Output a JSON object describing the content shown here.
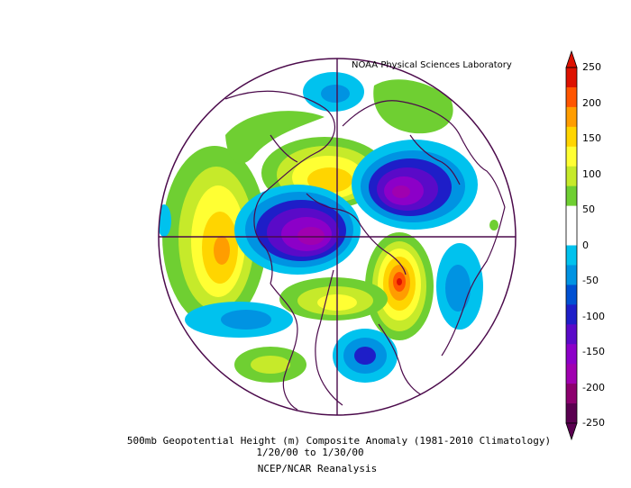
{
  "credit": "NOAA Physical Sciences Laboratory",
  "caption": {
    "title": "500mb Geopotential Height (m) Composite Anomaly (1981-2010 Climatology)",
    "dates": "1/20/00  to 1/30/00",
    "source": "NCEP/NCAR Reanalysis"
  },
  "colorbar": {
    "labels": [
      "250",
      "200",
      "150",
      "100",
      "50",
      "0",
      "-50",
      "-100",
      "-150",
      "-200",
      "-250"
    ],
    "colors": [
      "#dd1100",
      "#ff5500",
      "#ff9d00",
      "#ffd500",
      "#ffff33",
      "#c6ea2a",
      "#6fcf32",
      "#ffffff",
      "#ffffff",
      "#00c2ee",
      "#0093e2",
      "#0050d2",
      "#1e1ec8",
      "#5a0ac8",
      "#8c00c8",
      "#a000b0",
      "#8c006e",
      "#5a0050"
    ]
  },
  "map_features": {
    "anomalies": [
      {
        "name": "west-pacific-positive",
        "value": 150,
        "sign": "positive"
      },
      {
        "name": "west-europe-positive",
        "value": 150,
        "sign": "positive"
      },
      {
        "name": "atlantic-positive",
        "value": 240,
        "sign": "positive"
      },
      {
        "name": "north-america-positive",
        "value": 150,
        "sign": "positive"
      },
      {
        "name": "eastern-asia-negative",
        "value": -220,
        "sign": "negative"
      },
      {
        "name": "eurasia-negative",
        "value": -200,
        "sign": "negative"
      },
      {
        "name": "central-asia-negative",
        "value": -130,
        "sign": "negative"
      },
      {
        "name": "east-pacific-negative",
        "value": -120,
        "sign": "negative"
      },
      {
        "name": "gulf-negative",
        "value": -110,
        "sign": "negative"
      },
      {
        "name": "arctic-negative",
        "value": -70,
        "sign": "negative"
      }
    ]
  }
}
